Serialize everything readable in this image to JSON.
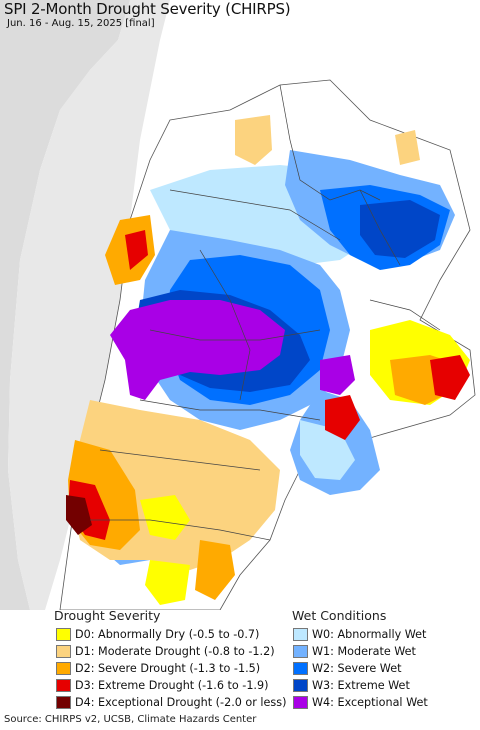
{
  "title": "SPI 2-Month Drought Severity (CHIRPS)",
  "subtitle": "Jun. 16 - Aug. 15, 2025 [final]",
  "legend": {
    "drought_heading": "Drought Severity",
    "wet_heading": "Wet Conditions",
    "drought": [
      {
        "label": "D0: Abnormally Dry (-0.5 to -0.7)",
        "color": "#ffff00"
      },
      {
        "label": "D1: Moderate Drought (-0.8 to -1.2)",
        "color": "#fcd37f"
      },
      {
        "label": "D2: Severe Drought (-1.3 to -1.5)",
        "color": "#ffaa00"
      },
      {
        "label": "D3: Extreme Drought (-1.6 to -1.9)",
        "color": "#e60000"
      },
      {
        "label": "D4: Exceptional Drought (-2.0 or less)",
        "color": "#730000"
      }
    ],
    "wet": [
      {
        "label": "W0: Abnormally Wet",
        "color": "#bee8ff"
      },
      {
        "label": "W1: Moderate Wet",
        "color": "#73b2ff"
      },
      {
        "label": "W2: Severe Wet",
        "color": "#0070ff"
      },
      {
        "label": "W3: Extreme Wet",
        "color": "#0046c8"
      },
      {
        "label": "W4: Exceptional Wet",
        "color": "#a900e6"
      }
    ]
  },
  "colors": {
    "ocean": "#dcdcdc",
    "land": "#ffffff",
    "border": "#444444"
  },
  "source": "Source: CHIRPS v2, UCSB, Climate Hazards Center"
}
